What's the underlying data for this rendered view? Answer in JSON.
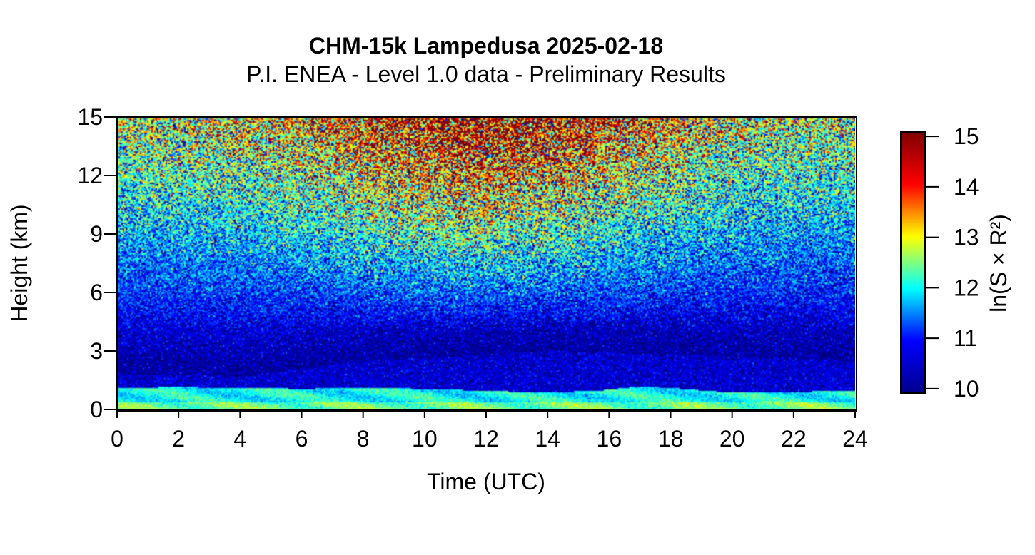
{
  "chart_data": {
    "type": "heatmap",
    "title": "CHM-15k Lampedusa 2025-02-18",
    "subtitle": "P.I. ENEA - Level 1.0 data - Preliminary Results",
    "xlabel": "Time (UTC)",
    "ylabel": "Height (km)",
    "xlim": [
      0,
      24
    ],
    "ylim": [
      0,
      15
    ],
    "x_ticks": [
      "0",
      "2",
      "4",
      "6",
      "8",
      "10",
      "12",
      "14",
      "16",
      "18",
      "20",
      "22",
      "24"
    ],
    "y_ticks": [
      "0",
      "3",
      "6",
      "9",
      "12",
      "15"
    ],
    "colorbar": {
      "label": "ln(S × R²)",
      "range": [
        9.9,
        15.1
      ],
      "ticks": [
        "10",
        "11",
        "12",
        "13",
        "14",
        "15"
      ],
      "colormap": "jet",
      "colors": [
        "#00008f",
        "#0000ff",
        "#00ffff",
        "#ffff00",
        "#ff0000",
        "#800000"
      ]
    },
    "features": {
      "boundary_layer_top_km": [
        [
          0,
          1.1
        ],
        [
          2,
          1.15
        ],
        [
          4,
          1.1
        ],
        [
          6,
          1.05
        ],
        [
          8,
          1.1
        ],
        [
          10,
          1.05
        ],
        [
          12,
          0.95
        ],
        [
          14,
          0.85
        ],
        [
          16,
          1.0
        ],
        [
          17,
          1.2
        ],
        [
          18,
          1.1
        ],
        [
          20,
          0.85
        ],
        [
          22,
          0.9
        ],
        [
          24,
          0.95
        ]
      ],
      "residual_layer_top_km": [
        [
          0,
          1.8
        ],
        [
          4,
          1.7
        ],
        [
          8,
          2.5
        ],
        [
          12,
          2.8
        ],
        [
          14,
          3.0
        ],
        [
          18,
          2.8
        ],
        [
          22,
          2.6
        ],
        [
          24,
          2.5
        ]
      ],
      "noise_increase_above_km": 4
    }
  }
}
